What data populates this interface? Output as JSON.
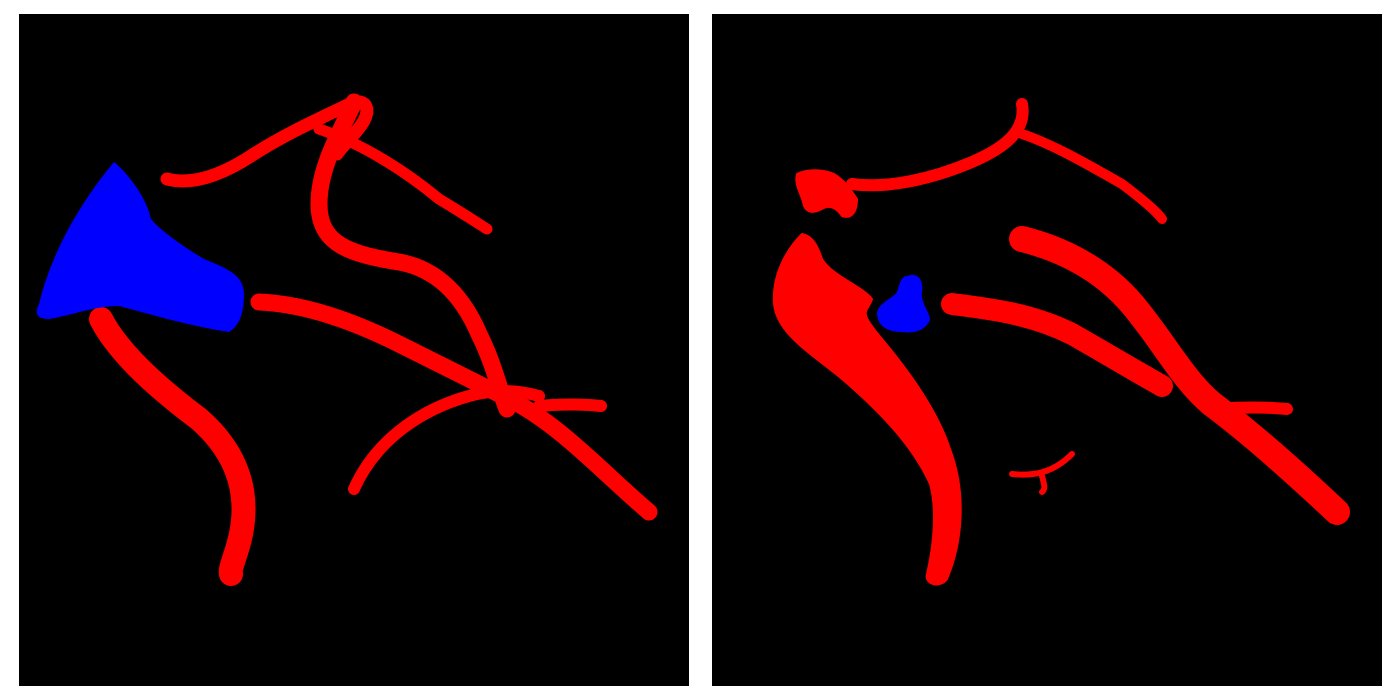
{
  "colors": {
    "background": "#ffffff",
    "panel": "#000000",
    "vessel": "#ff0000",
    "region": "#0000ff"
  },
  "panels": [
    {
      "label": "",
      "vessel_color": "#ff0000",
      "region_color": "#0000ff"
    },
    {
      "label": "",
      "vessel_color": "#ff0000",
      "region_color": "#0000ff"
    }
  ]
}
